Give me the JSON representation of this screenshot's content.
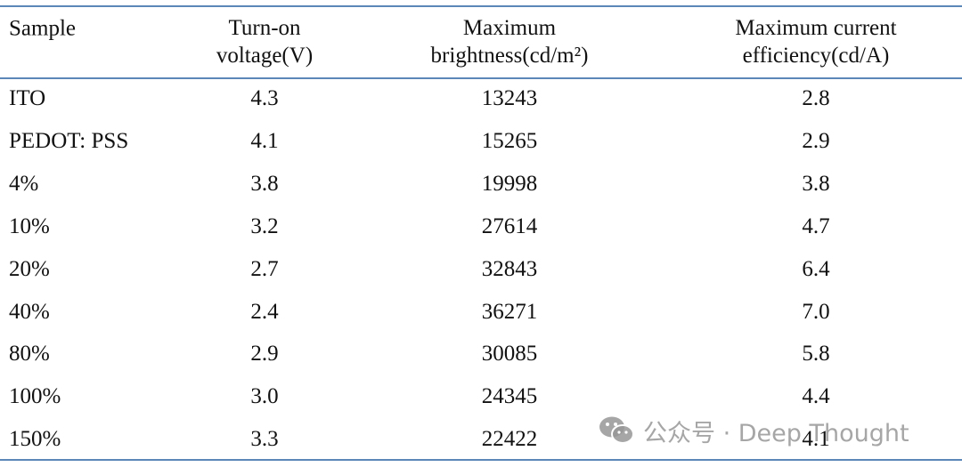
{
  "table": {
    "header": [
      [
        "Sample"
      ],
      [
        "Turn-on",
        "voltage(V)"
      ],
      [
        "Maximum",
        "brightness(cd/m²)"
      ],
      [
        "Maximum current",
        "efficiency(cd/A)"
      ]
    ],
    "rows": [
      [
        "ITO",
        "4.3",
        "13243",
        "2.8"
      ],
      [
        "PEDOT: PSS",
        "4.1",
        "15265",
        "2.9"
      ],
      [
        "4%",
        "3.8",
        "19998",
        "3.8"
      ],
      [
        "10%",
        "3.2",
        "27614",
        "4.7"
      ],
      [
        "20%",
        "2.7",
        "32843",
        "6.4"
      ],
      [
        "40%",
        "2.4",
        "36271",
        "7.0"
      ],
      [
        "80%",
        "2.9",
        "30085",
        "5.8"
      ],
      [
        "100%",
        "3.0",
        "24345",
        "4.4"
      ],
      [
        "150%",
        "3.3",
        "22422",
        "4.1"
      ]
    ]
  },
  "watermark": "公众号 · Deep Thought"
}
